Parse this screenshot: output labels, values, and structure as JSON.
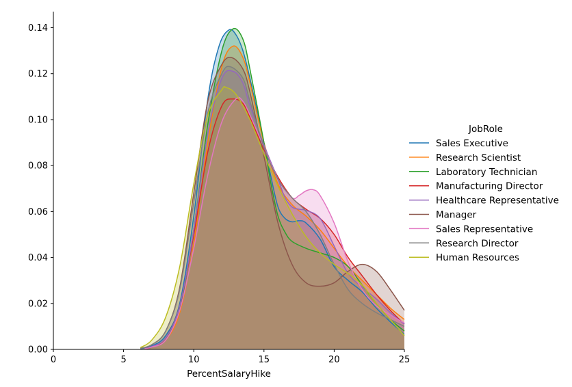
{
  "chart_data": {
    "type": "area",
    "subtype": "kde",
    "xlabel": "PercentSalaryHike",
    "ylabel": "",
    "xlim": [
      0,
      25
    ],
    "ylim": [
      0,
      0.147
    ],
    "x_ticks": [
      0,
      5,
      10,
      15,
      20,
      25
    ],
    "y_ticks": [
      0.0,
      0.02,
      0.04,
      0.06,
      0.08,
      0.1,
      0.12,
      0.14
    ],
    "x_tick_labels": [
      "0",
      "5",
      "10",
      "15",
      "20",
      "25"
    ],
    "y_tick_labels": [
      "0.00",
      "0.02",
      "0.04",
      "0.06",
      "0.08",
      "0.10",
      "0.12",
      "0.14"
    ],
    "grid": false,
    "legend_title": "JobRole",
    "legend_position": "right",
    "series": [
      {
        "name": "Sales Executive",
        "color": "#1f77b4",
        "points": [
          [
            6.2,
            0.0003
          ],
          [
            7,
            0.0015
          ],
          [
            8,
            0.006
          ],
          [
            9,
            0.02
          ],
          [
            10,
            0.058
          ],
          [
            11,
            0.109
          ],
          [
            11.8,
            0.132
          ],
          [
            12.5,
            0.139
          ],
          [
            13,
            0.137
          ],
          [
            13.5,
            0.13
          ],
          [
            14,
            0.118
          ],
          [
            15,
            0.09
          ],
          [
            15.5,
            0.075
          ],
          [
            16,
            0.062
          ],
          [
            16.5,
            0.057
          ],
          [
            17,
            0.0555
          ],
          [
            17.5,
            0.056
          ],
          [
            18,
            0.055
          ],
          [
            19,
            0.048
          ],
          [
            20,
            0.036
          ],
          [
            21,
            0.03
          ],
          [
            22,
            0.025
          ],
          [
            23,
            0.018
          ],
          [
            24,
            0.012
          ],
          [
            25,
            0.0065
          ]
        ]
      },
      {
        "name": "Research Scientist",
        "color": "#ff7f0e",
        "points": [
          [
            6.5,
            0.0003
          ],
          [
            7,
            0.001
          ],
          [
            8,
            0.004
          ],
          [
            9,
            0.016
          ],
          [
            10,
            0.046
          ],
          [
            11,
            0.09
          ],
          [
            12,
            0.123
          ],
          [
            12.8,
            0.132
          ],
          [
            13.5,
            0.127
          ],
          [
            14,
            0.116
          ],
          [
            15,
            0.09
          ],
          [
            16,
            0.072
          ],
          [
            17,
            0.063
          ],
          [
            18,
            0.058
          ],
          [
            19,
            0.052
          ],
          [
            20,
            0.044
          ],
          [
            21,
            0.036
          ],
          [
            22,
            0.03
          ],
          [
            23,
            0.024
          ],
          [
            24,
            0.018
          ],
          [
            25,
            0.013
          ]
        ]
      },
      {
        "name": "Laboratory Technician",
        "color": "#2ca02c",
        "points": [
          [
            6.5,
            0.0003
          ],
          [
            7,
            0.001
          ],
          [
            8,
            0.005
          ],
          [
            9,
            0.018
          ],
          [
            10,
            0.052
          ],
          [
            11,
            0.098
          ],
          [
            12,
            0.13
          ],
          [
            12.8,
            0.1395
          ],
          [
            13.5,
            0.135
          ],
          [
            14,
            0.122
          ],
          [
            15,
            0.09
          ],
          [
            15.5,
            0.072
          ],
          [
            16,
            0.058
          ],
          [
            16.5,
            0.051
          ],
          [
            17,
            0.047
          ],
          [
            18,
            0.044
          ],
          [
            19,
            0.042
          ],
          [
            20,
            0.04
          ],
          [
            21,
            0.036
          ],
          [
            22,
            0.028
          ],
          [
            23,
            0.02
          ],
          [
            24,
            0.013
          ],
          [
            25,
            0.008
          ]
        ]
      },
      {
        "name": "Manufacturing Director",
        "color": "#d62728",
        "points": [
          [
            6.5,
            0.0003
          ],
          [
            7,
            0.001
          ],
          [
            8,
            0.005
          ],
          [
            9,
            0.019
          ],
          [
            10,
            0.05
          ],
          [
            11,
            0.086
          ],
          [
            12,
            0.106
          ],
          [
            12.8,
            0.109
          ],
          [
            13.5,
            0.107
          ],
          [
            14,
            0.101
          ],
          [
            15,
            0.087
          ],
          [
            16,
            0.075
          ],
          [
            17,
            0.066
          ],
          [
            18,
            0.061
          ],
          [
            19,
            0.057
          ],
          [
            20,
            0.05
          ],
          [
            21,
            0.04
          ],
          [
            22,
            0.032
          ],
          [
            23,
            0.024
          ],
          [
            24,
            0.017
          ],
          [
            25,
            0.011
          ]
        ]
      },
      {
        "name": "Healthcare Representative",
        "color": "#9467bd",
        "points": [
          [
            6.5,
            0.0003
          ],
          [
            7,
            0.0012
          ],
          [
            8,
            0.005
          ],
          [
            9,
            0.019
          ],
          [
            10,
            0.052
          ],
          [
            11,
            0.094
          ],
          [
            12,
            0.118
          ],
          [
            12.8,
            0.121
          ],
          [
            13.5,
            0.116
          ],
          [
            14,
            0.106
          ],
          [
            15,
            0.089
          ],
          [
            16,
            0.074
          ],
          [
            16.5,
            0.066
          ],
          [
            17,
            0.062
          ],
          [
            17.5,
            0.061
          ],
          [
            18,
            0.0605
          ],
          [
            19,
            0.057
          ],
          [
            20,
            0.045
          ],
          [
            21,
            0.033
          ],
          [
            22,
            0.027
          ],
          [
            23,
            0.022
          ],
          [
            24,
            0.016
          ],
          [
            25,
            0.011
          ]
        ]
      },
      {
        "name": "Manager",
        "color": "#8c564b",
        "points": [
          [
            6.2,
            0.0005
          ],
          [
            7,
            0.002
          ],
          [
            8,
            0.008
          ],
          [
            9,
            0.027
          ],
          [
            10,
            0.068
          ],
          [
            11,
            0.108
          ],
          [
            12,
            0.124
          ],
          [
            12.7,
            0.127
          ],
          [
            13.5,
            0.122
          ],
          [
            14,
            0.112
          ],
          [
            15,
            0.084
          ],
          [
            16,
            0.055
          ],
          [
            17,
            0.037
          ],
          [
            18,
            0.029
          ],
          [
            19,
            0.0275
          ],
          [
            20,
            0.029
          ],
          [
            21,
            0.034
          ],
          [
            22,
            0.037
          ],
          [
            23,
            0.034
          ],
          [
            24,
            0.026
          ],
          [
            25,
            0.017
          ]
        ]
      },
      {
        "name": "Sales Representative",
        "color": "#e377c2",
        "points": [
          [
            6.5,
            0.0003
          ],
          [
            7,
            0.001
          ],
          [
            8,
            0.004
          ],
          [
            9,
            0.017
          ],
          [
            10,
            0.044
          ],
          [
            11,
            0.076
          ],
          [
            12,
            0.099
          ],
          [
            13,
            0.109
          ],
          [
            13.5,
            0.108
          ],
          [
            14,
            0.102
          ],
          [
            15,
            0.088
          ],
          [
            16,
            0.074
          ],
          [
            17,
            0.066
          ],
          [
            17.5,
            0.067
          ],
          [
            18,
            0.069
          ],
          [
            18.5,
            0.0695
          ],
          [
            19,
            0.067
          ],
          [
            20,
            0.055
          ],
          [
            21,
            0.038
          ],
          [
            22,
            0.026
          ],
          [
            23,
            0.019
          ],
          [
            24,
            0.015
          ],
          [
            25,
            0.0115
          ]
        ]
      },
      {
        "name": "Research Director",
        "color": "#7f7f7f",
        "points": [
          [
            6.2,
            0.0004
          ],
          [
            7,
            0.002
          ],
          [
            8,
            0.008
          ],
          [
            9,
            0.026
          ],
          [
            10,
            0.064
          ],
          [
            11,
            0.103
          ],
          [
            12,
            0.12
          ],
          [
            12.6,
            0.123
          ],
          [
            13.5,
            0.118
          ],
          [
            14,
            0.108
          ],
          [
            15,
            0.088
          ],
          [
            16,
            0.074
          ],
          [
            17,
            0.066
          ],
          [
            18,
            0.06
          ],
          [
            19,
            0.05
          ],
          [
            20,
            0.037
          ],
          [
            21,
            0.026
          ],
          [
            22,
            0.02
          ],
          [
            23,
            0.016
          ],
          [
            24,
            0.013
          ],
          [
            25,
            0.01
          ]
        ]
      },
      {
        "name": "Human Resources",
        "color": "#bcbd22",
        "points": [
          [
            6.2,
            0.0008
          ],
          [
            7,
            0.004
          ],
          [
            8,
            0.014
          ],
          [
            9,
            0.036
          ],
          [
            10,
            0.072
          ],
          [
            11,
            0.102
          ],
          [
            12,
            0.113
          ],
          [
            12.3,
            0.114
          ],
          [
            13,
            0.111
          ],
          [
            14,
            0.1
          ],
          [
            15,
            0.085
          ],
          [
            16,
            0.071
          ],
          [
            17,
            0.059
          ],
          [
            18,
            0.049
          ],
          [
            19,
            0.042
          ],
          [
            20,
            0.037
          ],
          [
            21,
            0.033
          ],
          [
            22,
            0.028
          ],
          [
            23,
            0.02
          ],
          [
            24,
            0.013
          ],
          [
            25,
            0.006
          ]
        ]
      }
    ]
  }
}
